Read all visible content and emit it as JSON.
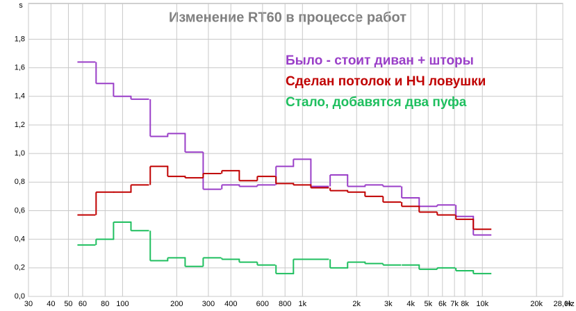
{
  "chart_data": {
    "type": "step",
    "title": "Изменение RT60 в процессе работ",
    "x_label": "Hz",
    "y_label": "s",
    "xscale": "log",
    "grid": true,
    "legend_position": "upper right",
    "x": [
      63,
      80,
      100,
      125,
      160,
      200,
      250,
      315,
      400,
      500,
      630,
      800,
      1000,
      1250,
      1600,
      2000,
      2500,
      3150,
      4000,
      5000,
      6300,
      8000,
      10000
    ],
    "series": [
      {
        "name": "Было - стоит диван + шторы",
        "color": "#9a3fc8",
        "values": [
          1.64,
          1.49,
          1.4,
          1.38,
          1.12,
          1.14,
          1.01,
          0.75,
          0.78,
          0.77,
          0.78,
          0.91,
          0.96,
          0.77,
          0.85,
          0.77,
          0.78,
          0.77,
          0.69,
          0.63,
          0.64,
          0.56,
          0.43
        ]
      },
      {
        "name": "Сделан потолок и НЧ ловушки",
        "color": "#c00000",
        "values": [
          0.57,
          0.73,
          0.73,
          0.78,
          0.91,
          0.84,
          0.83,
          0.86,
          0.88,
          0.81,
          0.84,
          0.79,
          0.78,
          0.76,
          0.74,
          0.73,
          0.7,
          0.66,
          0.63,
          0.59,
          0.57,
          0.54,
          0.47
        ]
      },
      {
        "name": "Стало, добавятся два пуфа",
        "color": "#1fbf5f",
        "values": [
          0.36,
          0.4,
          0.52,
          0.46,
          0.25,
          0.27,
          0.21,
          0.27,
          0.26,
          0.24,
          0.22,
          0.16,
          0.26,
          0.26,
          0.2,
          0.24,
          0.23,
          0.22,
          0.22,
          0.19,
          0.2,
          0.18,
          0.16
        ]
      }
    ],
    "xlim": [
      30,
      28000
    ],
    "xticks": [
      30,
      40,
      50,
      60,
      80,
      100,
      200,
      300,
      400,
      600,
      800,
      {
        "value": 1000,
        "label": "1k"
      },
      {
        "value": 2000,
        "label": "2k"
      },
      {
        "value": 3000,
        "label": "3k"
      },
      {
        "value": 4000,
        "label": "4k"
      },
      {
        "value": 5000,
        "label": "5k"
      },
      {
        "value": 6000,
        "label": "6k"
      },
      {
        "value": 7000,
        "label": "7k"
      },
      {
        "value": 8000,
        "label": "8k"
      },
      {
        "value": 10000,
        "label": "10k"
      },
      {
        "value": 20000,
        "label": "20k"
      },
      {
        "value": 28000,
        "label": "28,0k"
      }
    ],
    "ylim": [
      0,
      2.05
    ],
    "yticks": [
      {
        "value": 0,
        "label": "0,0"
      },
      {
        "value": 0.2,
        "label": "0,2"
      },
      {
        "value": 0.4,
        "label": "0,4"
      },
      {
        "value": 0.6,
        "label": "0,6"
      },
      {
        "value": 0.8,
        "label": "0,8"
      },
      {
        "value": 1.0,
        "label": "1,0"
      },
      {
        "value": 1.2,
        "label": "1,2"
      },
      {
        "value": 1.4,
        "label": "1,4"
      },
      {
        "value": 1.6,
        "label": "1,6"
      },
      {
        "value": 1.8,
        "label": "1,8"
      }
    ]
  }
}
